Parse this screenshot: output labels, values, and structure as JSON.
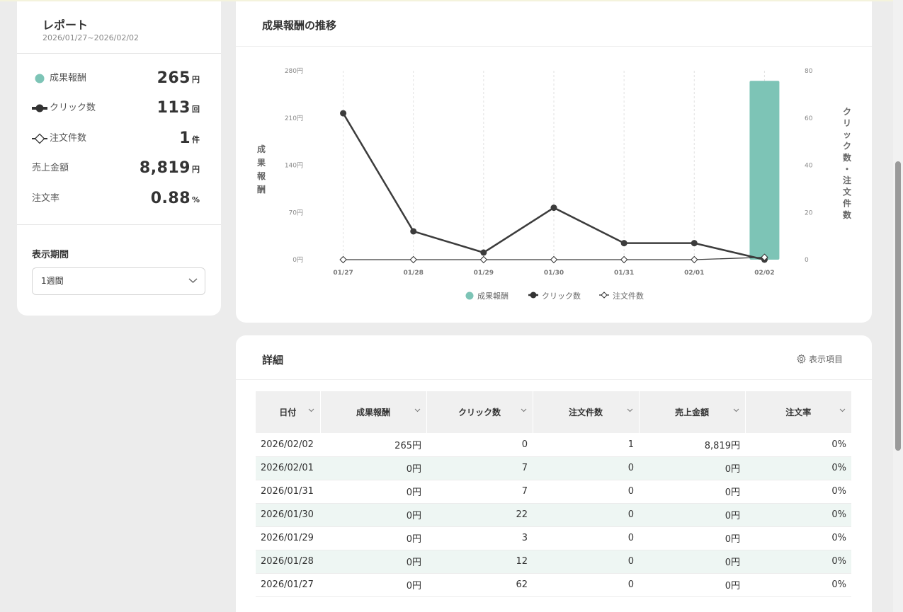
{
  "report": {
    "title": "レポート",
    "date_range": "2026/01/27~2026/02/02"
  },
  "summary": [
    {
      "key": "reward",
      "label": "成果報酬",
      "value": "265",
      "unit": "円",
      "icon": "teal-dot-icon"
    },
    {
      "key": "clicks",
      "label": "クリック数",
      "value": "113",
      "unit": "回",
      "icon": "filled-circle-line-icon"
    },
    {
      "key": "orders",
      "label": "注文件数",
      "value": "1",
      "unit": "件",
      "icon": "diamond-line-icon"
    },
    {
      "key": "sales",
      "label": "売上金額",
      "value": "8,819",
      "unit": "円"
    },
    {
      "key": "rate",
      "label": "注文率",
      "value": "0.88",
      "unit": "%"
    }
  ],
  "period": {
    "label": "表示期間",
    "selected": "1週間"
  },
  "chart_section": {
    "title": "成果報酬の推移"
  },
  "chart_data": {
    "type": "bar",
    "categories": [
      "01/27",
      "01/28",
      "01/29",
      "01/30",
      "01/31",
      "02/01",
      "02/02"
    ],
    "ylabel_left": "成果報酬",
    "ylabel_right": "クリック数・注文件数",
    "left_axis": {
      "min": 0,
      "max": 280,
      "ticks": [
        "0円",
        "70円",
        "140円",
        "210円",
        "280円"
      ],
      "tick_values": [
        0,
        70,
        140,
        210,
        280
      ]
    },
    "right_axis": {
      "min": 0,
      "max": 80,
      "ticks": [
        "0",
        "20",
        "40",
        "60",
        "80"
      ],
      "tick_values": [
        0,
        20,
        40,
        60,
        80
      ]
    },
    "series": [
      {
        "name": "成果報酬",
        "type": "bar",
        "axis": "left",
        "color": "#7dc4b6",
        "values": [
          0,
          0,
          0,
          0,
          0,
          0,
          265
        ]
      },
      {
        "name": "クリック数",
        "type": "line",
        "axis": "right",
        "color": "#3c3c3c",
        "marker": "circle",
        "values": [
          62,
          12,
          3,
          22,
          7,
          7,
          0
        ]
      },
      {
        "name": "注文件数",
        "type": "line",
        "axis": "right",
        "color": "#3c3c3c",
        "marker": "diamond",
        "values": [
          0,
          0,
          0,
          0,
          0,
          0,
          1
        ]
      }
    ],
    "legend_position": "bottom",
    "grid": "vertical-dashed"
  },
  "details": {
    "title": "詳細",
    "columns_button": "表示項目",
    "columns": [
      "日付",
      "成果報酬",
      "クリック数",
      "注文件数",
      "売上金額",
      "注文率"
    ],
    "rows": [
      [
        "2026/02/02",
        "265円",
        "0",
        "1",
        "8,819円",
        "0%"
      ],
      [
        "2026/02/01",
        "0円",
        "7",
        "0",
        "0円",
        "0%"
      ],
      [
        "2026/01/31",
        "0円",
        "7",
        "0",
        "0円",
        "0%"
      ],
      [
        "2026/01/30",
        "0円",
        "22",
        "0",
        "0円",
        "0%"
      ],
      [
        "2026/01/29",
        "0円",
        "3",
        "0",
        "0円",
        "0%"
      ],
      [
        "2026/01/28",
        "0円",
        "12",
        "0",
        "0円",
        "0%"
      ],
      [
        "2026/01/27",
        "0円",
        "62",
        "0",
        "0円",
        "0%"
      ]
    ]
  },
  "colors": {
    "accent": "#7dc4b6",
    "row_alt": "#eef6f3",
    "line": "#3c3c3c"
  }
}
